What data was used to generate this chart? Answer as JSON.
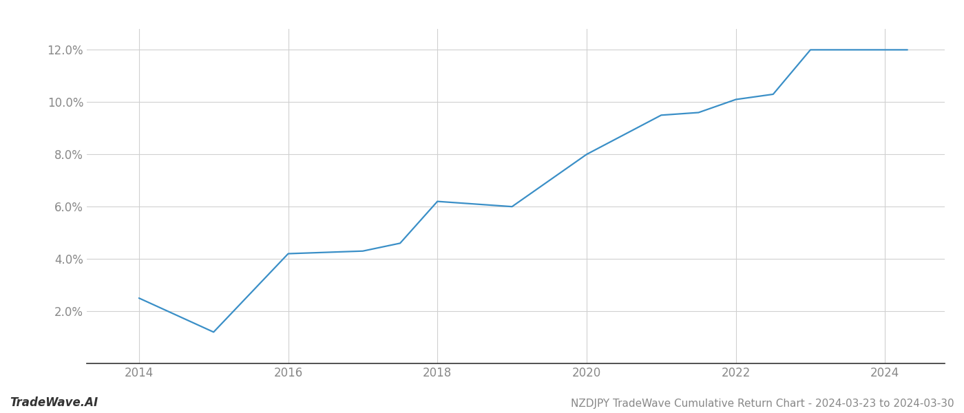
{
  "x_values": [
    2014,
    2015,
    2016,
    2017.0,
    2017.5,
    2018,
    2019,
    2020,
    2021,
    2021.5,
    2022,
    2022.5,
    2023,
    2024,
    2024.3
  ],
  "y_values": [
    2.5,
    1.2,
    4.2,
    4.3,
    4.6,
    6.2,
    6.0,
    8.0,
    9.5,
    9.6,
    10.1,
    10.3,
    12.0,
    12.0,
    12.0
  ],
  "line_color": "#3a8fc7",
  "line_width": 1.6,
  "title": "NZDJPY TradeWave Cumulative Return Chart - 2024-03-23 to 2024-03-30",
  "watermark": "TradeWave.AI",
  "xlim": [
    2013.3,
    2024.8
  ],
  "ylim": [
    0.0,
    12.8
  ],
  "yticks": [
    2.0,
    4.0,
    6.0,
    8.0,
    10.0,
    12.0
  ],
  "xticks": [
    2014,
    2016,
    2018,
    2020,
    2022,
    2024
  ],
  "background_color": "#ffffff",
  "grid_color": "#d0d0d0",
  "title_fontsize": 11,
  "tick_fontsize": 12,
  "watermark_fontsize": 12
}
